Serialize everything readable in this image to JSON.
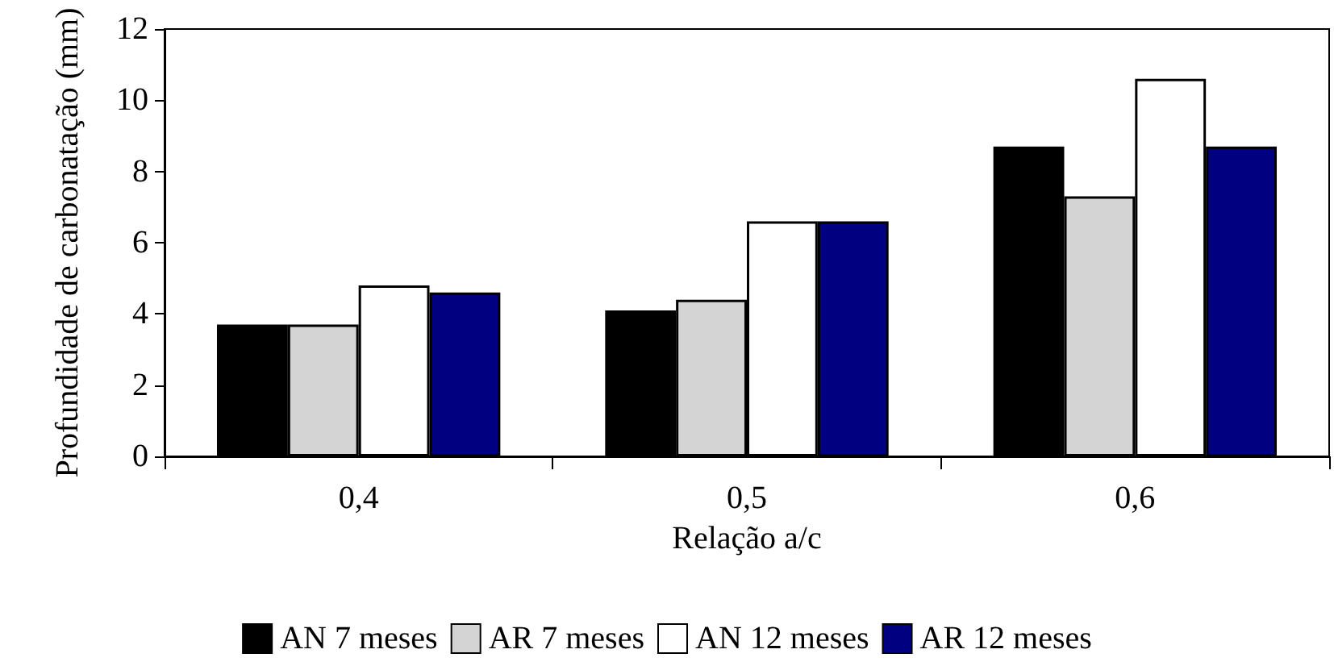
{
  "chart_data": {
    "type": "bar",
    "xlabel": "Relação a/c",
    "ylabel": "Profundidade de carbonatação (mm)",
    "categories": [
      "0,4",
      "0,5",
      "0,6"
    ],
    "series": [
      {
        "name": "AN 7 meses",
        "color": "#000000",
        "values": [
          3.7,
          4.1,
          8.7
        ]
      },
      {
        "name": "AR 7 meses",
        "color": "#d4d4d4",
        "values": [
          3.7,
          4.4,
          7.3
        ]
      },
      {
        "name": "AN 12 meses",
        "color": "#ffffff",
        "values": [
          4.8,
          6.6,
          10.6
        ]
      },
      {
        "name": "AR 12 meses",
        "color": "#000080",
        "values": [
          4.6,
          6.6,
          8.7
        ]
      }
    ],
    "ylim": [
      0,
      12
    ],
    "yticks": [
      0,
      2,
      4,
      6,
      8,
      10,
      12
    ],
    "grid": false,
    "legend": "bottom"
  }
}
